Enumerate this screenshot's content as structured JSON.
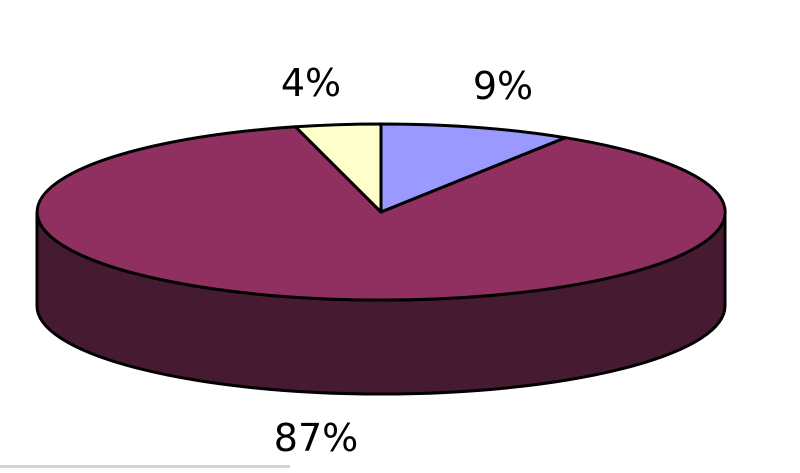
{
  "chart_data": {
    "type": "pie",
    "style": "3d",
    "categories": [
      "",
      "",
      ""
    ],
    "values": [
      87,
      4,
      9
    ],
    "labels": [
      "87%",
      "4%",
      "9%"
    ],
    "colors": {
      "top": [
        "#8f3060",
        "#ffffcc",
        "#9999ff"
      ],
      "side": "#461a30",
      "outline": "#000000"
    },
    "title": "",
    "legend": "none"
  }
}
